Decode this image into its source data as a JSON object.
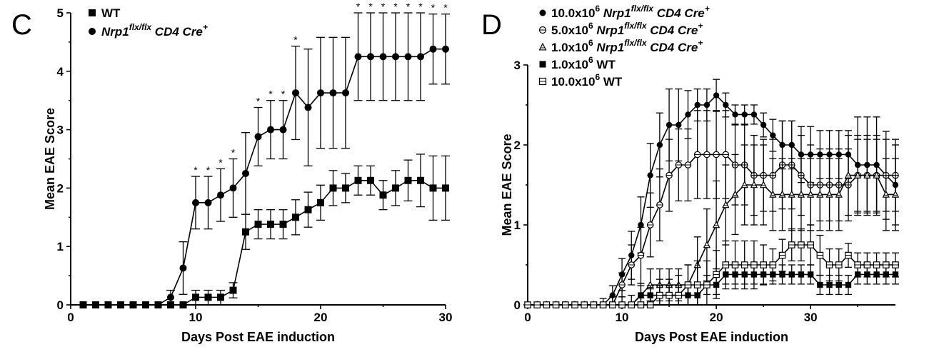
{
  "chart_data": [
    {
      "panel": "C",
      "type": "line",
      "xlabel": "Days Post EAE induction",
      "ylabel": "Mean EAE Score",
      "xlim": [
        0,
        30
      ],
      "ylim": [
        0,
        5
      ],
      "xticks": [
        "0",
        "10",
        "20",
        "30"
      ],
      "yticks": [
        "0",
        "1",
        "2",
        "3",
        "4",
        "5"
      ],
      "x": [
        1,
        2,
        3,
        4,
        5,
        6,
        7,
        8,
        9,
        10,
        11,
        12,
        13,
        14,
        15,
        16,
        17,
        18,
        19,
        20,
        21,
        22,
        23,
        24,
        25,
        26,
        27,
        28,
        29,
        30
      ],
      "series": [
        {
          "name": "WT",
          "marker": "square-filled",
          "values": [
            0,
            0,
            0,
            0,
            0,
            0,
            0,
            0,
            0,
            0.13,
            0.13,
            0.13,
            0.25,
            1.25,
            1.38,
            1.38,
            1.38,
            1.5,
            1.63,
            1.75,
            2.0,
            2.0,
            2.13,
            2.13,
            1.88,
            2.0,
            2.13,
            2.13,
            2.0,
            2.0
          ],
          "errors": [
            0,
            0,
            0,
            0,
            0,
            0,
            0,
            0,
            0,
            0.12,
            0.12,
            0.12,
            0.13,
            0.3,
            0.25,
            0.25,
            0.25,
            0.3,
            0.3,
            0.3,
            0.3,
            0.25,
            0.25,
            0.25,
            0.25,
            0.3,
            0.35,
            0.45,
            0.55,
            0.55
          ]
        },
        {
          "name": "Nrp1",
          "name_sup": "flx/flx",
          "name_rest": " CD4 Cre",
          "name_rest_sup": "+",
          "marker": "circle-filled",
          "values": [
            0,
            0,
            0,
            0,
            0,
            0,
            0,
            0.13,
            0.63,
            1.75,
            1.75,
            1.88,
            2.0,
            2.25,
            2.88,
            3.0,
            3.0,
            3.63,
            3.38,
            3.63,
            3.63,
            3.63,
            4.25,
            4.25,
            4.25,
            4.25,
            4.25,
            4.25,
            4.38,
            4.38
          ],
          "errors": [
            0,
            0,
            0,
            0,
            0,
            0,
            0,
            0.12,
            0.45,
            0.45,
            0.45,
            0.45,
            0.5,
            0.7,
            0.5,
            0.5,
            0.5,
            0.8,
            1.0,
            0.95,
            0.95,
            0.95,
            0.75,
            0.75,
            0.75,
            0.75,
            0.75,
            0.75,
            0.6,
            0.6
          ]
        }
      ],
      "significance_label": "*",
      "significance_days": [
        10,
        11,
        12,
        13,
        15,
        16,
        17,
        18,
        23,
        24,
        25,
        26,
        27,
        28,
        29,
        30
      ]
    },
    {
      "panel": "D",
      "type": "line",
      "xlabel": "Days Post EAE induction",
      "ylabel": "Mean EAE Score",
      "xlim": [
        0,
        39
      ],
      "ylim": [
        0,
        3
      ],
      "xticks": [
        "0",
        "10",
        "20",
        "30"
      ],
      "yticks": [
        "0",
        "1",
        "2",
        "3"
      ],
      "x": [
        0,
        1,
        2,
        3,
        4,
        5,
        6,
        7,
        8,
        9,
        10,
        11,
        12,
        13,
        14,
        15,
        16,
        17,
        18,
        19,
        20,
        21,
        22,
        23,
        24,
        25,
        26,
        27,
        28,
        29,
        30,
        31,
        32,
        33,
        34,
        35,
        36,
        37,
        38,
        39
      ],
      "series": [
        {
          "name": "10.0x10",
          "name_sup": "6",
          "name_italic": "Nrp1",
          "name_italic_sup": "flx/flx",
          "name_tail": "CD4 Cre",
          "name_tail_sup": "+",
          "marker": "circle-filled",
          "values": [
            0,
            0,
            0,
            0,
            0,
            0,
            0,
            0,
            0,
            0.12,
            0.38,
            0.62,
            1.0,
            1.62,
            2.0,
            2.25,
            2.25,
            2.38,
            2.5,
            2.5,
            2.62,
            2.5,
            2.38,
            2.38,
            2.38,
            2.25,
            2.12,
            2.0,
            2.0,
            1.88,
            1.88,
            1.88,
            1.88,
            1.88,
            1.88,
            1.75,
            1.75,
            1.75,
            1.62,
            1.5
          ],
          "errors": [
            0,
            0,
            0,
            0,
            0,
            0,
            0,
            0,
            0,
            0.12,
            0.2,
            0.3,
            0.35,
            0.4,
            0.4,
            0.45,
            0.45,
            0.3,
            0.2,
            0.2,
            0.2,
            0.15,
            0.12,
            0.12,
            0.12,
            0.15,
            0.2,
            0.3,
            0.3,
            0.35,
            0.35,
            0.3,
            0.3,
            0.3,
            0.3,
            0.6,
            0.6,
            0.6,
            0.55,
            0.5
          ]
        },
        {
          "name": "5.0x10",
          "name_sup": "6",
          "name_italic": "Nrp1",
          "name_italic_sup": "flx/flx",
          "name_tail": "CD4 Cre",
          "name_tail_sup": "+",
          "marker": "circle-open",
          "values": [
            0,
            0,
            0,
            0,
            0,
            0,
            0,
            0,
            0,
            0,
            0.25,
            0.5,
            0.62,
            1.0,
            1.25,
            1.62,
            1.75,
            1.75,
            1.88,
            1.88,
            1.88,
            1.88,
            1.75,
            1.75,
            1.62,
            1.62,
            1.62,
            1.75,
            1.75,
            1.62,
            1.5,
            1.5,
            1.5,
            1.5,
            1.5,
            1.62,
            1.62,
            1.62,
            1.62,
            1.62
          ],
          "errors": [
            0,
            0,
            0,
            0,
            0,
            0,
            0,
            0,
            0,
            0,
            0.15,
            0.25,
            0.35,
            0.4,
            0.45,
            0.45,
            0.45,
            0.45,
            0.55,
            0.55,
            0.55,
            0.55,
            0.5,
            0.5,
            0.5,
            0.45,
            0.45,
            0.55,
            0.55,
            0.5,
            0.5,
            0.45,
            0.45,
            0.45,
            0.45,
            0.45,
            0.45,
            0.45,
            0.45,
            0.45
          ]
        },
        {
          "name": "1.0x10",
          "name_sup": "6",
          "name_italic": "Nrp1",
          "name_italic_sup": "flx/flx",
          "name_tail": "CD4 Cre",
          "name_tail_sup": "+",
          "marker": "triangle-open",
          "values": [
            0,
            0,
            0,
            0,
            0,
            0,
            0,
            0,
            0,
            0,
            0,
            0,
            0.12,
            0.25,
            0.25,
            0.25,
            0.25,
            0.25,
            0.5,
            0.75,
            1.0,
            1.25,
            1.38,
            1.5,
            1.5,
            1.5,
            1.38,
            1.38,
            1.38,
            1.38,
            1.38,
            1.38,
            1.38,
            1.38,
            1.62,
            1.62,
            1.62,
            1.62,
            1.38,
            1.38
          ],
          "errors": [
            0,
            0,
            0,
            0,
            0,
            0,
            0,
            0,
            0.08,
            0.1,
            0.1,
            0.12,
            0.15,
            0.2,
            0.2,
            0.2,
            0.2,
            0.25,
            0.35,
            0.45,
            0.55,
            0.5,
            0.5,
            0.5,
            0.5,
            0.5,
            0.45,
            0.45,
            0.45,
            0.45,
            0.45,
            0.45,
            0.45,
            0.45,
            0.5,
            0.5,
            0.5,
            0.5,
            0.45,
            0.45
          ]
        },
        {
          "name": "1.0x10",
          "name_sup": "6",
          "name_tail": "WT",
          "marker": "square-filled",
          "values": [
            0,
            0,
            0,
            0,
            0,
            0,
            0,
            0,
            0,
            0,
            0,
            0,
            0.12,
            0.12,
            0.12,
            0.12,
            0.12,
            0.12,
            0.12,
            0.25,
            0.25,
            0.38,
            0.38,
            0.38,
            0.38,
            0.38,
            0.38,
            0.38,
            0.38,
            0.38,
            0.38,
            0.25,
            0.25,
            0.25,
            0.25,
            0.38,
            0.38,
            0.38,
            0.38,
            0.38
          ],
          "errors": [
            0,
            0,
            0,
            0,
            0,
            0,
            0,
            0,
            0,
            0,
            0,
            0,
            0.12,
            0.12,
            0.12,
            0.12,
            0.12,
            0.12,
            0.12,
            0.12,
            0.12,
            0.12,
            0.12,
            0.12,
            0.12,
            0.12,
            0.12,
            0.12,
            0.12,
            0.12,
            0.12,
            0.12,
            0.12,
            0.12,
            0.12,
            0.12,
            0.12,
            0.12,
            0.12,
            0.12
          ]
        },
        {
          "name": "10.0x10",
          "name_sup": "6",
          "name_tail": "WT",
          "marker": "square-open",
          "values": [
            0,
            0,
            0,
            0,
            0,
            0,
            0,
            0,
            0,
            0,
            0,
            0,
            0,
            0,
            0.12,
            0.12,
            0.12,
            0.25,
            0.25,
            0.25,
            0.38,
            0.5,
            0.5,
            0.5,
            0.5,
            0.5,
            0.5,
            0.62,
            0.75,
            0.75,
            0.75,
            0.62,
            0.5,
            0.5,
            0.62,
            0.5,
            0.5,
            0.5,
            0.5,
            0.5
          ],
          "errors": [
            0,
            0,
            0,
            0,
            0,
            0,
            0,
            0,
            0,
            0,
            0,
            0,
            0,
            0.2,
            0.2,
            0.2,
            0.25,
            0.25,
            0.3,
            0.3,
            0.3,
            0.3,
            0.3,
            0.3,
            0.3,
            0.25,
            0.2,
            0.2,
            0.2,
            0.2,
            0.25,
            0.25,
            0.2,
            0.2,
            0.15,
            0.15,
            0.15,
            0.15,
            0.15,
            0.15
          ]
        }
      ]
    }
  ]
}
